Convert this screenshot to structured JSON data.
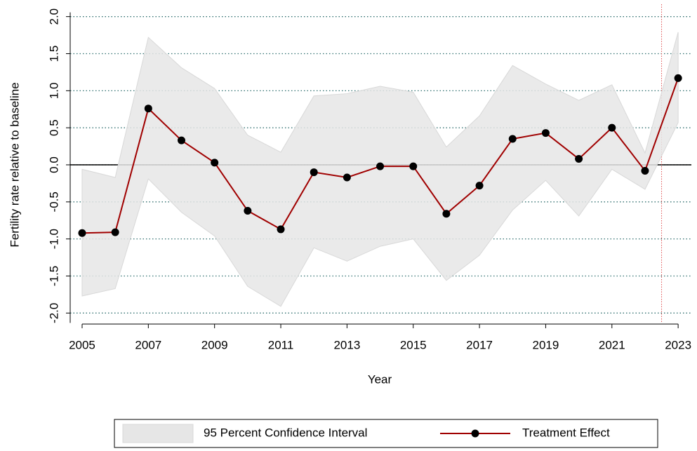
{
  "chart_data": {
    "type": "line",
    "x_label": "Year",
    "y_label": "Fertility rate relative to baseline",
    "x": [
      2005,
      2006,
      2007,
      2008,
      2009,
      2010,
      2011,
      2012,
      2013,
      2014,
      2015,
      2016,
      2017,
      2018,
      2019,
      2020,
      2021,
      2022,
      2023
    ],
    "series": [
      {
        "name": "Treatment Effect",
        "color": "#a00000",
        "values": [
          -0.92,
          -0.91,
          0.76,
          0.33,
          0.03,
          -0.62,
          -0.87,
          -0.1,
          -0.17,
          -0.02,
          -0.02,
          -0.66,
          -0.28,
          0.35,
          0.43,
          0.08,
          0.5,
          -0.08,
          1.17
        ]
      }
    ],
    "band": {
      "name": "95 Percent Confidence Interval",
      "color": "#e6e6e6",
      "upper": [
        -0.06,
        -0.17,
        1.72,
        1.31,
        1.03,
        0.4,
        0.17,
        0.93,
        0.96,
        1.06,
        0.98,
        0.24,
        0.66,
        1.34,
        1.09,
        0.87,
        1.08,
        0.16,
        1.79
      ],
      "lower": [
        -1.77,
        -1.67,
        -0.19,
        -0.64,
        -0.96,
        -1.64,
        -1.91,
        -1.12,
        -1.3,
        -1.1,
        -1.0,
        -1.56,
        -1.22,
        -0.61,
        -0.21,
        -0.69,
        -0.06,
        -0.33,
        0.57
      ]
    },
    "xlim": [
      2004.64,
      2023.4
    ],
    "xticks": [
      2005,
      2007,
      2009,
      2011,
      2013,
      2015,
      2017,
      2019,
      2021,
      2023
    ],
    "ylim": [
      -2.12,
      2.12
    ],
    "yticks": [
      {
        "value": -2,
        "label": "-2.0"
      },
      -1.5,
      {
        "value": -1,
        "label": "-1.0"
      },
      -0.5,
      {
        "value": 0,
        "label": "0.0"
      },
      0.5,
      {
        "value": 1,
        "label": "1.0"
      },
      1.5,
      {
        "value": 2,
        "label": "2.0"
      }
    ],
    "grid": true,
    "grid_color": "#2f6f6f",
    "hline": 0,
    "vline": 2022.5,
    "vline_color": "#e05050",
    "legend": "bottom"
  }
}
